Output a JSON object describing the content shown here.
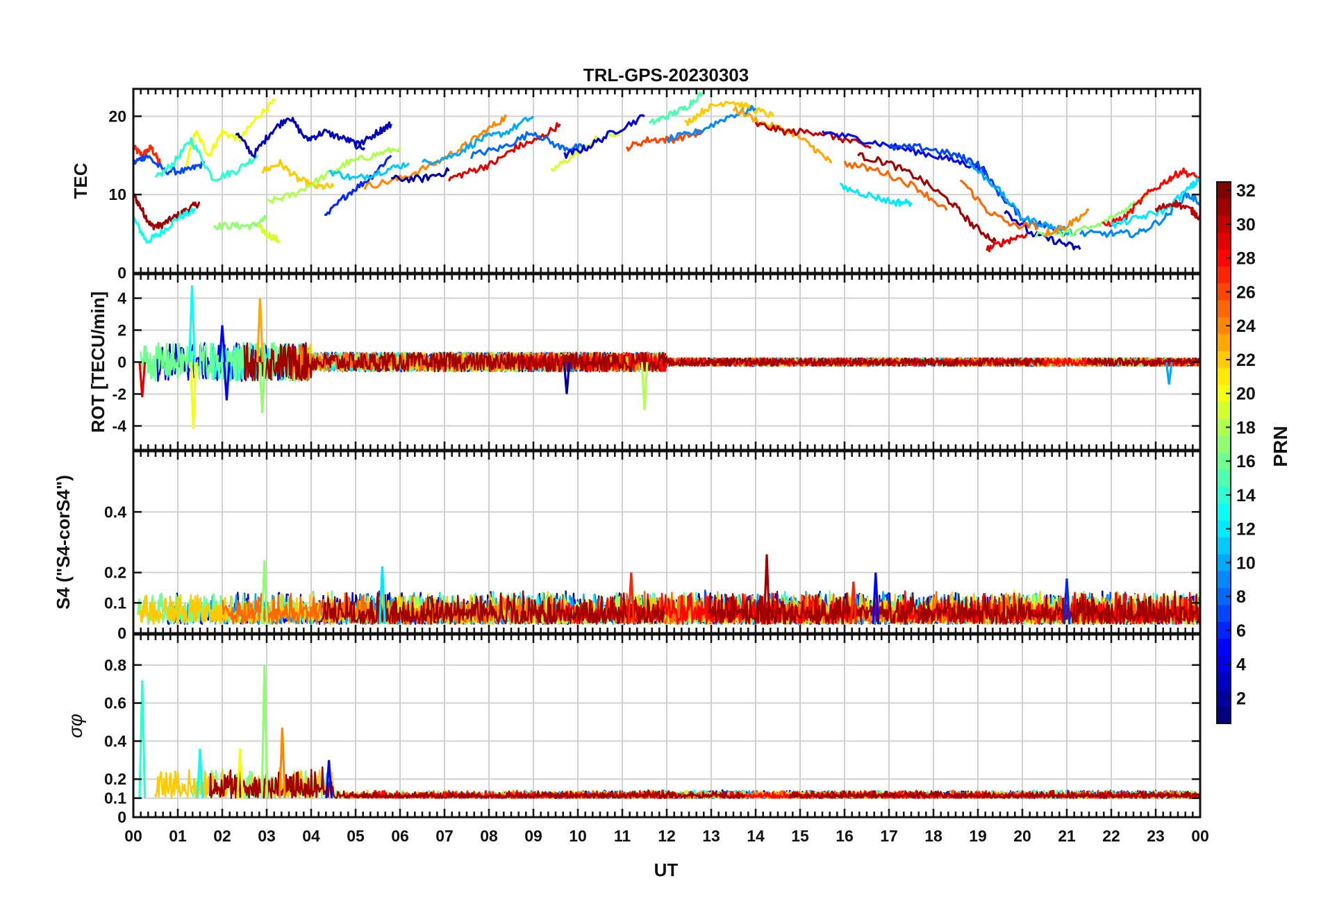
{
  "chart_data": {
    "type": "line",
    "title": "TRL-GPS-20230303",
    "xlabel": "UT",
    "x_ticks": [
      "00",
      "01",
      "02",
      "03",
      "04",
      "05",
      "06",
      "07",
      "08",
      "09",
      "10",
      "11",
      "12",
      "13",
      "14",
      "15",
      "16",
      "17",
      "18",
      "19",
      "20",
      "21",
      "22",
      "23",
      "00"
    ],
    "xlim_hours": [
      0,
      24
    ],
    "colorbar": {
      "label": "PRN",
      "range": [
        1,
        32
      ],
      "ticks": [
        "2",
        "4",
        "6",
        "8",
        "10",
        "12",
        "14",
        "16",
        "18",
        "20",
        "22",
        "24",
        "26",
        "28",
        "30",
        "32"
      ],
      "colormap": "jet"
    },
    "panels": [
      {
        "id": "tec",
        "ylabel": "TEC",
        "ylim": [
          0,
          23.5
        ],
        "yticks": [
          {
            "v": 0,
            "t": "0"
          },
          {
            "v": 10,
            "t": "10"
          },
          {
            "v": 20,
            "t": "20"
          }
        ],
        "series": [
          {
            "prn": 27,
            "x": [
              0.0,
              0.2,
              0.4,
              0.6
            ],
            "y": [
              16,
              15,
              16,
              14
            ]
          },
          {
            "prn": 31,
            "x": [
              0.0,
              0.2,
              0.4,
              0.6,
              0.9,
              1.2,
              1.5
            ],
            "y": [
              10,
              8,
              6,
              6,
              7,
              8,
              9
            ]
          },
          {
            "prn": 13,
            "x": [
              0.0,
              0.3,
              0.6,
              1.0,
              1.4
            ],
            "y": [
              7,
              4,
              5,
              7,
              8
            ]
          },
          {
            "prn": 7,
            "x": [
              0.0,
              0.3,
              0.7,
              1.2,
              1.6
            ],
            "y": [
              14,
              15,
              13,
              13,
              14
            ]
          },
          {
            "prn": 20,
            "x": [
              1.2,
              1.4,
              1.7,
              2.0,
              2.4,
              2.8,
              3.2
            ],
            "y": [
              14,
              18,
              15,
              18,
              17,
              20,
              22
            ]
          },
          {
            "prn": 14,
            "x": [
              0.5,
              0.9,
              1.3,
              1.8,
              2.3,
              2.8
            ],
            "y": [
              12,
              14,
              17,
              12,
              13,
              15
            ]
          },
          {
            "prn": 17,
            "x": [
              1.8,
              2.3,
              2.7,
              3.0
            ],
            "y": [
              6,
              6,
              6,
              7
            ]
          },
          {
            "prn": 19,
            "x": [
              2.8,
              3.0,
              3.3
            ],
            "y": [
              6,
              5,
              4
            ]
          },
          {
            "prn": 3,
            "x": [
              2.3,
              2.7,
              3.1,
              3.5,
              3.9,
              4.3,
              4.8,
              5.2
            ],
            "y": [
              18,
              15,
              18,
              20,
              17,
              18,
              17,
              16
            ]
          },
          {
            "prn": 22,
            "x": [
              2.9,
              3.3,
              3.7,
              4.1,
              4.5
            ],
            "y": [
              13,
              14,
              12,
              11,
              11
            ]
          },
          {
            "prn": 18,
            "x": [
              3.0,
              3.6,
              4.2,
              4.8,
              5.4,
              6.0
            ],
            "y": [
              9,
              10,
              12,
              14,
              15,
              16
            ]
          },
          {
            "prn": 6,
            "x": [
              4.3,
              4.8,
              5.3,
              5.8
            ],
            "y": [
              7,
              10,
              12,
              15
            ]
          },
          {
            "prn": 3,
            "x": [
              5.0,
              5.5,
              5.8
            ],
            "y": [
              16,
              18,
              19
            ]
          },
          {
            "prn": 11,
            "x": [
              4.4,
              5.0,
              5.6,
              6.2
            ],
            "y": [
              13,
              12,
              13,
              14
            ]
          },
          {
            "prn": 24,
            "x": [
              5.2,
              6.0,
              6.8,
              7.4,
              7.9,
              8.4
            ],
            "y": [
              11,
              12,
              14,
              16,
              18,
              20
            ]
          },
          {
            "prn": 10,
            "x": [
              6.5,
              7.2,
              7.8,
              8.4,
              9.0
            ],
            "y": [
              14,
              15,
              17,
              18,
              20
            ]
          },
          {
            "prn": 2,
            "x": [
              5.8,
              6.5,
              7.1
            ],
            "y": [
              12,
              12,
              13
            ]
          },
          {
            "prn": 29,
            "x": [
              7.1,
              7.6,
              8.1,
              8.6,
              9.1,
              9.6
            ],
            "y": [
              12,
              13,
              14,
              16,
              17,
              19
            ]
          },
          {
            "prn": 8,
            "x": [
              7.6,
              8.3,
              9.0,
              9.6,
              10.1
            ],
            "y": [
              15,
              16,
              18,
              16,
              16
            ]
          },
          {
            "prn": 19,
            "x": [
              9.4,
              9.9,
              10.4,
              11.0
            ],
            "y": [
              13,
              15,
              17,
              18
            ]
          },
          {
            "prn": 4,
            "x": [
              9.7,
              10.2,
              10.8,
              11.5
            ],
            "y": [
              15,
              16,
              18,
              20
            ]
          },
          {
            "prn": 26,
            "x": [
              11.1,
              11.6,
              12.1,
              12.8
            ],
            "y": [
              16,
              17,
              17,
              18
            ]
          },
          {
            "prn": 15,
            "x": [
              11.6,
              12.0,
              12.4,
              12.8
            ],
            "y": [
              19,
              20,
              21,
              23
            ]
          },
          {
            "prn": 22,
            "x": [
              12.4,
              12.9,
              13.4,
              13.9,
              14.4
            ],
            "y": [
              19,
              21,
              22,
              21,
              20
            ]
          },
          {
            "prn": 9,
            "x": [
              12.0,
              12.7,
              13.4,
              14.0
            ],
            "y": [
              17,
              18,
              20,
              21
            ]
          },
          {
            "prn": 23,
            "x": [
              13.5,
              14.2,
              14.8,
              15.3,
              15.7
            ],
            "y": [
              21,
              19,
              18,
              16,
              14
            ]
          },
          {
            "prn": 30,
            "x": [
              14.0,
              14.7,
              15.4,
              16.0,
              16.6
            ],
            "y": [
              19,
              18,
              18,
              17,
              16
            ]
          },
          {
            "prn": 5,
            "x": [
              15.5,
              16.4,
              17.2,
              18.0,
              18.7,
              19.2
            ],
            "y": [
              18,
              17,
              16,
              15,
              14,
              13
            ]
          },
          {
            "prn": 12,
            "x": [
              15.9,
              16.5,
              17.1,
              17.5
            ],
            "y": [
              11,
              10,
              9,
              9
            ]
          },
          {
            "prn": 31,
            "x": [
              16.3,
              17.0,
              17.7,
              18.4,
              18.9,
              19.4
            ],
            "y": [
              15,
              14,
              12,
              9,
              6,
              4
            ]
          },
          {
            "prn": 25,
            "x": [
              16.0,
              16.8,
              17.6,
              18.3
            ],
            "y": [
              14,
              13,
              11,
              8
            ]
          },
          {
            "prn": 7,
            "x": [
              17.0,
              17.8,
              18.5,
              19.0,
              19.5,
              20.0,
              20.5,
              21.0
            ],
            "y": [
              16,
              16,
              15,
              14,
              10,
              7,
              6,
              5
            ]
          },
          {
            "prn": 3,
            "x": [
              19.6,
              20.2,
              20.8,
              21.3
            ],
            "y": [
              8,
              5,
              4,
              3
            ]
          },
          {
            "prn": 25,
            "x": [
              18.6,
              19.2,
              19.8,
              20.4
            ],
            "y": [
              12,
              8,
              6,
              6
            ]
          },
          {
            "prn": 29,
            "x": [
              19.2,
              19.6,
              20.1
            ],
            "y": [
              3,
              4,
              5
            ]
          },
          {
            "prn": 10,
            "x": [
              18.8,
              19.4,
              20.0,
              20.6,
              21.2
            ],
            "y": [
              14,
              11,
              7,
              6,
              5
            ]
          },
          {
            "prn": 17,
            "x": [
              20.3,
              21.0,
              21.7,
              22.3,
              22.8
            ],
            "y": [
              5,
              5,
              6,
              8,
              10
            ]
          },
          {
            "prn": 24,
            "x": [
              20.5,
              21.0,
              21.5
            ],
            "y": [
              5,
              6,
              8
            ]
          },
          {
            "prn": 28,
            "x": [
              21.8,
              22.3,
              22.8,
              23.3,
              23.6,
              24.0
            ],
            "y": [
              6,
              7,
              10,
              12,
              13,
              12
            ]
          },
          {
            "prn": 9,
            "x": [
              21.3,
              22.0,
              22.6,
              23.2,
              23.7,
              24.0
            ],
            "y": [
              5,
              5,
              5,
              7,
              10,
              9
            ]
          },
          {
            "prn": 12,
            "x": [
              22.0,
              22.6,
              23.2,
              23.8,
              24.0
            ],
            "y": [
              6,
              7,
              8,
              11,
              12
            ]
          },
          {
            "prn": 30,
            "x": [
              23.0,
              23.4,
              23.8,
              24.0
            ],
            "y": [
              8,
              9,
              8,
              7
            ]
          }
        ]
      },
      {
        "id": "rot",
        "ylabel": "ROT [TECU/min]",
        "ylim": [
          -5.5,
          5.5
        ],
        "yticks": [
          {
            "v": -4,
            "t": "-4"
          },
          {
            "v": -2,
            "t": "-2"
          },
          {
            "v": 0,
            "t": "0"
          },
          {
            "v": 2,
            "t": "2"
          },
          {
            "v": 4,
            "t": "4"
          }
        ],
        "spikes": [
          {
            "prn": 13,
            "x": 1.32,
            "y": 4.8
          },
          {
            "prn": 20,
            "x": 1.35,
            "y": -4.2
          },
          {
            "prn": 17,
            "x": 2.9,
            "y": -3.2
          },
          {
            "prn": 23,
            "x": 2.85,
            "y": 4.0
          },
          {
            "prn": 5,
            "x": 2.0,
            "y": 2.3
          },
          {
            "prn": 5,
            "x": 2.1,
            "y": -2.4
          },
          {
            "prn": 2,
            "x": 9.75,
            "y": -2.0
          },
          {
            "prn": 18,
            "x": 11.5,
            "y": -3.0
          },
          {
            "prn": 29,
            "x": 0.2,
            "y": -2.2
          },
          {
            "prn": 10,
            "x": 23.3,
            "y": -1.4
          }
        ]
      },
      {
        "id": "s4",
        "ylabel": "S4 (\"S4-corS4\")",
        "ylim": [
          0,
          0.6
        ],
        "yticks": [
          {
            "v": 0,
            "t": "0"
          },
          {
            "v": 0.1,
            "t": "0.1"
          },
          {
            "v": 0.2,
            "t": "0.2"
          },
          {
            "v": 0.4,
            "t": "0.4"
          }
        ],
        "spikes": [
          {
            "prn": 17,
            "x": 2.95,
            "y": 0.24
          },
          {
            "prn": 12,
            "x": 5.6,
            "y": 0.22
          },
          {
            "prn": 31,
            "x": 14.25,
            "y": 0.26
          },
          {
            "prn": 27,
            "x": 11.2,
            "y": 0.2
          },
          {
            "prn": 5,
            "x": 16.7,
            "y": 0.2
          },
          {
            "prn": 6,
            "x": 21.0,
            "y": 0.18
          },
          {
            "prn": 27,
            "x": 16.2,
            "y": 0.17
          }
        ]
      },
      {
        "id": "sigphi",
        "ylabel": "σφ",
        "ylim": [
          0,
          0.96
        ],
        "yticks": [
          {
            "v": 0,
            "t": "0"
          },
          {
            "v": 0.1,
            "t": "0.1"
          },
          {
            "v": 0.2,
            "t": "0.2"
          },
          {
            "v": 0.4,
            "t": "0.4"
          },
          {
            "v": 0.6,
            "t": "0.6"
          },
          {
            "v": 0.8,
            "t": "0.8"
          }
        ],
        "spikes": [
          {
            "prn": 14,
            "x": 0.2,
            "y": 0.72
          },
          {
            "prn": 17,
            "x": 2.95,
            "y": 0.8
          },
          {
            "prn": 24,
            "x": 3.35,
            "y": 0.47
          },
          {
            "prn": 13,
            "x": 1.5,
            "y": 0.36
          },
          {
            "prn": 20,
            "x": 2.4,
            "y": 0.36
          },
          {
            "prn": 5,
            "x": 4.4,
            "y": 0.3
          }
        ]
      }
    ]
  }
}
